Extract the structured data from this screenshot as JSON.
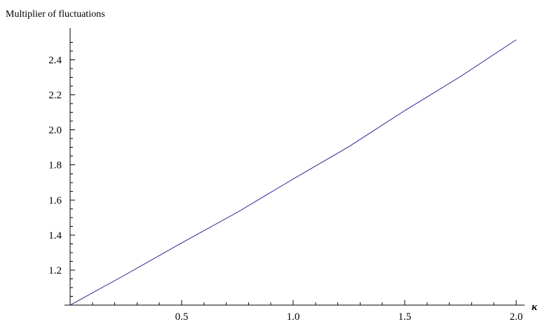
{
  "chart_data": {
    "type": "line",
    "title": "",
    "ylabel": "Multiplier of fluctuations",
    "xlabel": "κ",
    "xlim": [
      0,
      2.0
    ],
    "ylim": [
      1.0,
      2.55
    ],
    "x_ticks": [
      "0.5",
      "1.0",
      "1.5",
      "2.0"
    ],
    "y_ticks": [
      "1.2",
      "1.4",
      "1.6",
      "1.8",
      "2.0",
      "2.2",
      "2.4"
    ],
    "x_tick_values": [
      0.5,
      1.0,
      1.5,
      2.0
    ],
    "y_tick_values": [
      1.2,
      1.4,
      1.6,
      1.8,
      2.0,
      2.2,
      2.4
    ],
    "grid": false,
    "series": [
      {
        "color": "#3b3b9e",
        "x": [
          0,
          0.25,
          0.5,
          0.75,
          1.0,
          1.25,
          1.5,
          1.75,
          2.0
        ],
        "y": [
          1.0,
          1.175,
          1.355,
          1.53,
          1.72,
          1.905,
          2.11,
          2.305,
          2.515
        ]
      }
    ]
  }
}
